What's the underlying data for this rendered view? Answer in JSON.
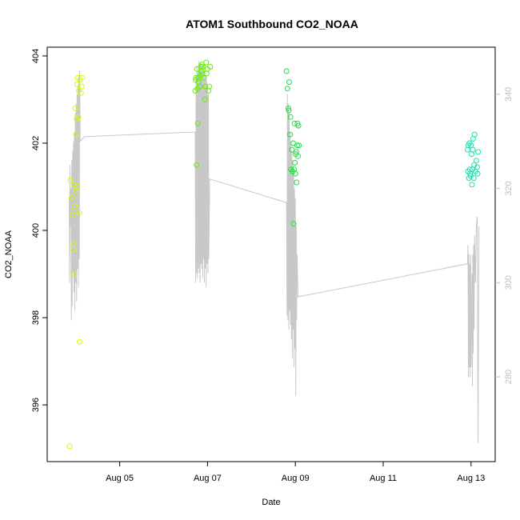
{
  "chart_data": {
    "type": "scatter",
    "title": "ATOM1 Southbound CO2_NOAA",
    "xlabel": "Date",
    "ylabel": "CO2_NOAA",
    "xlim": [
      "2016-08-03",
      "2016-08-13"
    ],
    "ylim": [
      394.7,
      404.2
    ],
    "x_ticks": [
      "Aug 05",
      "Aug 07",
      "Aug 09",
      "Aug 11",
      "Aug 13"
    ],
    "x_tick_values": [
      5,
      7,
      9,
      11,
      13
    ],
    "y_ticks": [
      396,
      398,
      400,
      402,
      404
    ],
    "y2lim": [
      262,
      350
    ],
    "y2_ticks": [
      280,
      300,
      320,
      340
    ],
    "y2_color": "#bdbdbd",
    "line_color": "#c8c8c8",
    "grid": false,
    "series": [
      {
        "color": "#ccff00",
        "points": [
          [
            3.86,
            395.05
          ],
          [
            3.88,
            401.15
          ],
          [
            3.9,
            400.75
          ],
          [
            3.92,
            400.35
          ],
          [
            3.94,
            399.55
          ],
          [
            3.95,
            399.7
          ],
          [
            3.96,
            401.05
          ],
          [
            3.97,
            399.0
          ],
          [
            3.98,
            400.55
          ],
          [
            3.99,
            402.8
          ],
          [
            4.0,
            400.9
          ],
          [
            4.01,
            402.2
          ],
          [
            4.02,
            402.55
          ],
          [
            4.03,
            403.35
          ],
          [
            4.04,
            401.0
          ],
          [
            4.05,
            403.5
          ],
          [
            4.06,
            402.6
          ],
          [
            4.07,
            403.2
          ],
          [
            4.08,
            400.4
          ],
          [
            4.09,
            397.45
          ],
          [
            4.1,
            403.45
          ],
          [
            4.12,
            403.15
          ],
          [
            4.14,
            403.3
          ],
          [
            4.15,
            403.5
          ]
        ]
      },
      {
        "color": "#66ee00",
        "points": [
          [
            6.72,
            403.2
          ],
          [
            6.73,
            403.45
          ],
          [
            6.74,
            403.5
          ],
          [
            6.75,
            401.5
          ],
          [
            6.76,
            403.7
          ],
          [
            6.77,
            403.25
          ],
          [
            6.78,
            402.45
          ],
          [
            6.79,
            403.5
          ],
          [
            6.8,
            403.4
          ],
          [
            6.82,
            403.3
          ],
          [
            6.84,
            403.55
          ],
          [
            6.85,
            403.75
          ],
          [
            6.86,
            403.65
          ],
          [
            6.87,
            403.8
          ],
          [
            6.88,
            403.6
          ],
          [
            6.9,
            403.75
          ],
          [
            6.92,
            403.5
          ],
          [
            6.94,
            403.0
          ],
          [
            6.95,
            403.3
          ],
          [
            6.97,
            403.85
          ],
          [
            6.98,
            403.6
          ],
          [
            7.0,
            403.7
          ],
          [
            7.02,
            403.2
          ],
          [
            7.04,
            403.3
          ],
          [
            7.06,
            403.75
          ]
        ]
      },
      {
        "color": "#22dd44",
        "points": [
          [
            8.8,
            403.65
          ],
          [
            8.82,
            403.25
          ],
          [
            8.84,
            402.8
          ],
          [
            8.85,
            402.75
          ],
          [
            8.86,
            403.4
          ],
          [
            8.88,
            402.2
          ],
          [
            8.89,
            402.6
          ],
          [
            8.9,
            401.4
          ],
          [
            8.92,
            401.85
          ],
          [
            8.94,
            401.35
          ],
          [
            8.95,
            402.0
          ],
          [
            8.96,
            400.15
          ],
          [
            8.97,
            401.4
          ],
          [
            8.98,
            402.45
          ],
          [
            8.99,
            401.55
          ],
          [
            9.0,
            401.3
          ],
          [
            9.01,
            401.75
          ],
          [
            9.02,
            401.8
          ],
          [
            9.03,
            401.1
          ],
          [
            9.04,
            401.95
          ],
          [
            9.05,
            402.45
          ],
          [
            9.06,
            401.7
          ],
          [
            9.07,
            402.4
          ],
          [
            9.08,
            401.95
          ]
        ]
      },
      {
        "color": "#22ddaa",
        "points": [
          [
            12.92,
            401.85
          ],
          [
            12.93,
            401.35
          ],
          [
            12.94,
            401.95
          ],
          [
            12.95,
            401.2
          ],
          [
            12.96,
            402.0
          ],
          [
            12.97,
            401.4
          ],
          [
            12.98,
            401.3
          ],
          [
            12.99,
            401.25
          ],
          [
            13.0,
            401.95
          ],
          [
            13.01,
            401.75
          ],
          [
            13.02,
            401.05
          ],
          [
            13.03,
            401.4
          ],
          [
            13.04,
            401.85
          ],
          [
            13.05,
            402.1
          ],
          [
            13.06,
            401.2
          ],
          [
            13.07,
            401.5
          ],
          [
            13.08,
            402.2
          ],
          [
            13.1,
            401.35
          ],
          [
            13.12,
            401.6
          ],
          [
            13.14,
            401.45
          ],
          [
            13.15,
            401.3
          ],
          [
            13.16,
            401.8
          ]
        ]
      }
    ],
    "secondary_line": [
      [
        3.85,
        318
      ],
      [
        3.86,
        300
      ],
      [
        3.87,
        325
      ],
      [
        3.88,
        312
      ],
      [
        3.89,
        320
      ],
      [
        3.9,
        292
      ],
      [
        3.91,
        326
      ],
      [
        3.92,
        295
      ],
      [
        3.93,
        328
      ],
      [
        3.94,
        302
      ],
      [
        3.95,
        330
      ],
      [
        3.96,
        298
      ],
      [
        3.97,
        332
      ],
      [
        3.98,
        294
      ],
      [
        3.99,
        336
      ],
      [
        4.0,
        300
      ],
      [
        4.01,
        338
      ],
      [
        4.02,
        296
      ],
      [
        4.03,
        340
      ],
      [
        4.04,
        303
      ],
      [
        4.05,
        342
      ],
      [
        4.06,
        299
      ],
      [
        4.07,
        344
      ],
      [
        4.08,
        305
      ],
      [
        4.09,
        345
      ],
      [
        4.1,
        330
      ],
      [
        4.2,
        331
      ],
      [
        6.72,
        332
      ],
      [
        6.73,
        300
      ],
      [
        6.74,
        344
      ],
      [
        6.75,
        302
      ],
      [
        6.76,
        346
      ],
      [
        6.77,
        301
      ],
      [
        6.78,
        345
      ],
      [
        6.79,
        303
      ],
      [
        6.8,
        347
      ],
      [
        6.81,
        302
      ],
      [
        6.82,
        346
      ],
      [
        6.83,
        300
      ],
      [
        6.84,
        347
      ],
      [
        6.85,
        304
      ],
      [
        6.86,
        345
      ],
      [
        6.87,
        303
      ],
      [
        6.88,
        346
      ],
      [
        6.89,
        301
      ],
      [
        6.9,
        344
      ],
      [
        6.91,
        305
      ],
      [
        6.92,
        346
      ],
      [
        6.93,
        300
      ],
      [
        6.94,
        345
      ],
      [
        6.95,
        303
      ],
      [
        6.96,
        344
      ],
      [
        6.97,
        299
      ],
      [
        6.98,
        343
      ],
      [
        6.99,
        304
      ],
      [
        7.0,
        342
      ],
      [
        7.01,
        302
      ],
      [
        7.02,
        340
      ],
      [
        7.03,
        305
      ],
      [
        7.05,
        322
      ],
      [
        8.8,
        317
      ],
      [
        8.81,
        293
      ],
      [
        8.82,
        340
      ],
      [
        8.83,
        292
      ],
      [
        8.84,
        338
      ],
      [
        8.85,
        290
      ],
      [
        8.86,
        336
      ],
      [
        8.87,
        294
      ],
      [
        8.88,
        332
      ],
      [
        8.89,
        291
      ],
      [
        8.9,
        330
      ],
      [
        8.91,
        288
      ],
      [
        8.92,
        328
      ],
      [
        8.93,
        284
      ],
      [
        8.94,
        326
      ],
      [
        8.95,
        290
      ],
      [
        8.96,
        324
      ],
      [
        8.97,
        282
      ],
      [
        8.98,
        320
      ],
      [
        8.99,
        286
      ],
      [
        9.0,
        318
      ],
      [
        9.01,
        276
      ],
      [
        9.02,
        312
      ],
      [
        9.03,
        292
      ],
      [
        9.04,
        306
      ],
      [
        9.06,
        297
      ],
      [
        12.92,
        304
      ],
      [
        12.93,
        308
      ],
      [
        12.94,
        280
      ],
      [
        12.95,
        306
      ],
      [
        12.96,
        282
      ],
      [
        12.97,
        304
      ],
      [
        12.98,
        280
      ],
      [
        12.99,
        306
      ],
      [
        13.0,
        282
      ],
      [
        13.02,
        302
      ],
      [
        13.03,
        278
      ],
      [
        13.04,
        306
      ],
      [
        13.05,
        285
      ],
      [
        13.06,
        308
      ],
      [
        13.07,
        290
      ],
      [
        13.08,
        310
      ],
      [
        13.1,
        300
      ],
      [
        13.12,
        312
      ],
      [
        13.14,
        314
      ],
      [
        13.16,
        266
      ],
      [
        13.18,
        312
      ]
    ]
  }
}
